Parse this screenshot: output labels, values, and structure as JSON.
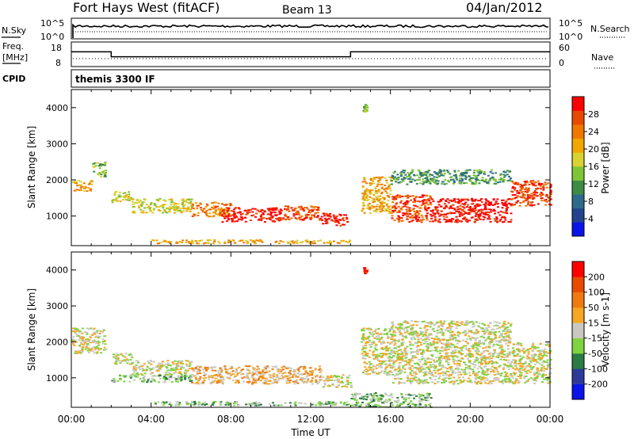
{
  "header": {
    "station": "Fort Hays West (fitACF)",
    "beam": "Beam 13",
    "date": "04/Jan/2012"
  },
  "noise_panel": {
    "left_label": "N.Sky",
    "right_label": "N.Search",
    "tick_top": "10^5",
    "tick_bottom": "10^0"
  },
  "freq_panel": {
    "left_label_1": "Freq.",
    "left_label_2": "[MHz]",
    "left_tick_top": "18",
    "left_tick_bottom": "8",
    "right_label": "Nave",
    "right_tick_top": "60",
    "right_tick_bottom": "0",
    "freq_steps": [
      {
        "t": 0.0,
        "mhz": 14.0
      },
      {
        "t": 2.0,
        "mhz": 12.0
      },
      {
        "t": 14.0,
        "mhz": 14.0
      },
      {
        "t": 24.0,
        "mhz": 14.0
      }
    ]
  },
  "cpid_panel": {
    "label": "CPID",
    "value": "themis 3300 IF"
  },
  "colors": {
    "scale_power": [
      "#0a14e6",
      "#24438c",
      "#2e6b8a",
      "#3c8c46",
      "#80c437",
      "#d8d232",
      "#f0a800",
      "#f07800",
      "#e64a00",
      "#ff0000"
    ],
    "scale_velocity": [
      "#0a14e6",
      "#2e3a9a",
      "#2a7b45",
      "#7fd340",
      "#c8c8c0",
      "#f5a623",
      "#f07a10",
      "#e84a00",
      "#ff0000"
    ]
  },
  "chart_data": [
    {
      "type": "heatmap",
      "name": "power",
      "xlabel": "",
      "ylabel": "Slant Range [km]",
      "xlim": [
        0,
        24
      ],
      "ylim": [
        180,
        4500
      ],
      "x_ticks": [
        "00:00",
        "04:00",
        "08:00",
        "12:00",
        "16:00",
        "20:00",
        "00:00"
      ],
      "y_ticks": [
        1000,
        2000,
        3000,
        4000
      ],
      "colorbar": {
        "label": "Power [dB]",
        "ticks": [
          "4",
          "8",
          "12",
          "16",
          "20",
          "24",
          "28"
        ]
      },
      "bands": [
        {
          "t0": 0.0,
          "t1": 1.0,
          "r0": 1700,
          "r1": 2000,
          "level": 6
        },
        {
          "t0": 1.0,
          "t1": 1.7,
          "r0": 2100,
          "r1": 2500,
          "level": 4
        },
        {
          "t0": 2.0,
          "t1": 3.0,
          "r0": 1400,
          "r1": 1700,
          "level": 5
        },
        {
          "t0": 3.0,
          "t1": 6.0,
          "r0": 1100,
          "r1": 1500,
          "level": 5
        },
        {
          "t0": 6.0,
          "t1": 8.0,
          "r0": 1000,
          "r1": 1400,
          "level": 7
        },
        {
          "t0": 7.5,
          "t1": 10.5,
          "r0": 850,
          "r1": 1250,
          "level": 9
        },
        {
          "t0": 10.5,
          "t1": 12.5,
          "r0": 900,
          "r1": 1300,
          "level": 8
        },
        {
          "t0": 12.5,
          "t1": 13.8,
          "r0": 750,
          "r1": 1100,
          "level": 9
        },
        {
          "t0": 14.5,
          "t1": 16.0,
          "r0": 1100,
          "r1": 2100,
          "level": 6
        },
        {
          "t0": 16.0,
          "t1": 18.0,
          "r0": 850,
          "r1": 1600,
          "level": 8
        },
        {
          "t0": 18.0,
          "t1": 22.0,
          "r0": 850,
          "r1": 1500,
          "level": 9
        },
        {
          "t0": 22.0,
          "t1": 24.0,
          "r0": 1300,
          "r1": 2000,
          "level": 8
        },
        {
          "t0": 4.0,
          "t1": 14.0,
          "r0": 260,
          "r1": 360,
          "level": 6
        },
        {
          "t0": 16.0,
          "t1": 22.0,
          "r0": 1900,
          "r1": 2300,
          "level": 3
        },
        {
          "t0": 14.6,
          "t1": 14.8,
          "r0": 3900,
          "r1": 4100,
          "level": 4
        }
      ]
    },
    {
      "type": "heatmap",
      "name": "velocity",
      "xlabel": "Time UT",
      "ylabel": "Slant Range [km]",
      "xlim": [
        0,
        24
      ],
      "ylim": [
        180,
        4500
      ],
      "x_ticks": [
        "00:00",
        "04:00",
        "08:00",
        "12:00",
        "16:00",
        "20:00",
        "00:00"
      ],
      "y_ticks": [
        1000,
        2000,
        3000,
        4000
      ],
      "colorbar": {
        "label": "Velocity [m s-1]",
        "ticks": [
          "200",
          "100",
          "50",
          "15",
          "-15",
          "-50",
          "-100",
          "-200"
        ]
      },
      "bands": [
        {
          "t0": 0.0,
          "t1": 1.7,
          "r0": 1700,
          "r1": 2400,
          "level": 4
        },
        {
          "t0": 2.0,
          "t1": 3.0,
          "r0": 1400,
          "r1": 1700,
          "level": 4
        },
        {
          "t0": 3.0,
          "t1": 6.0,
          "r0": 1100,
          "r1": 1500,
          "level": 4
        },
        {
          "t0": 2.0,
          "t1": 6.0,
          "r0": 900,
          "r1": 1100,
          "level": 3
        },
        {
          "t0": 6.0,
          "t1": 12.5,
          "r0": 850,
          "r1": 1350,
          "level": 5
        },
        {
          "t0": 12.5,
          "t1": 14.0,
          "r0": 750,
          "r1": 1100,
          "level": 4
        },
        {
          "t0": 14.5,
          "t1": 16.0,
          "r0": 1100,
          "r1": 2400,
          "level": 4
        },
        {
          "t0": 16.0,
          "t1": 24.0,
          "r0": 850,
          "r1": 2000,
          "level": 4
        },
        {
          "t0": 4.0,
          "t1": 14.0,
          "r0": 250,
          "r1": 360,
          "level": 3
        },
        {
          "t0": 14.0,
          "t1": 18.0,
          "r0": 200,
          "r1": 600,
          "level": 3
        },
        {
          "t0": 16.0,
          "t1": 22.0,
          "r0": 2000,
          "r1": 2600,
          "level": 4
        },
        {
          "t0": 14.6,
          "t1": 14.8,
          "r0": 3900,
          "r1": 4100,
          "level": 8
        }
      ]
    }
  ]
}
